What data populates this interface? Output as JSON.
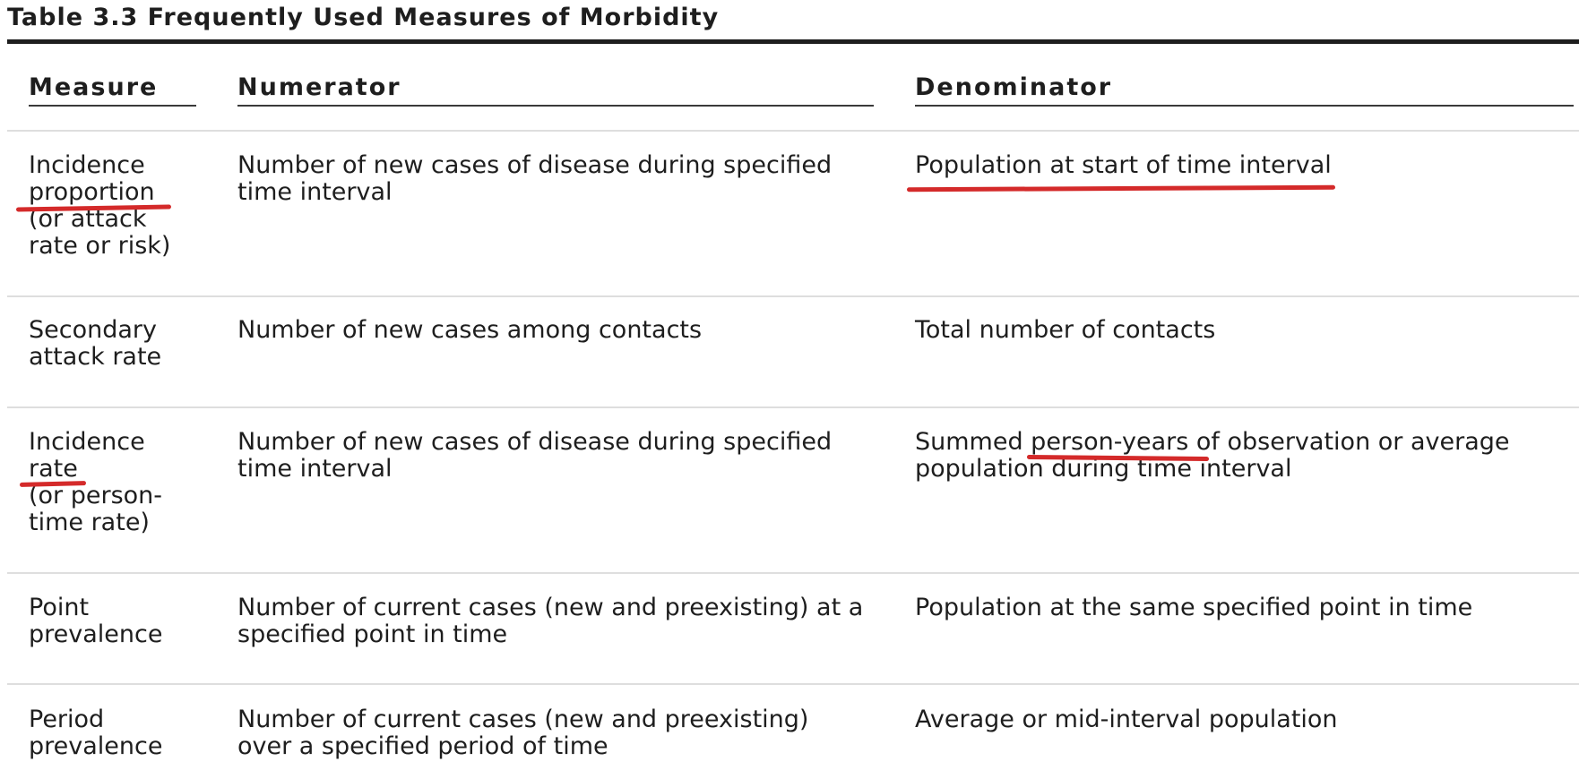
{
  "title": "Table 3.3 Frequently Used Measures of Morbidity",
  "columns": [
    "Measure",
    "Numerator",
    "Denominator"
  ],
  "rows": [
    {
      "measure": "Incidence\nproportion\n(or attack\nrate or risk)",
      "numerator": "Number of new cases of disease during specified\ntime interval",
      "denominator": "Population at start of time interval"
    },
    {
      "measure": "Secondary\nattack rate",
      "numerator": "Number of new cases among contacts",
      "denominator": "Total number of contacts"
    },
    {
      "measure": "Incidence\nrate\n(or person-\ntime rate)",
      "numerator": "Number of new cases of disease during specified\ntime interval",
      "denominator": "Summed person-years of observation or average\npopulation during time interval"
    },
    {
      "measure": "Point\nprevalence",
      "numerator": "Number of current cases (new and preexisting) at a\nspecified point in time",
      "denominator": "Population at the same specified point in time"
    },
    {
      "measure": "Period\nprevalence",
      "numerator": "Number of current cases (new and preexisting)\nover a specified period of time",
      "denominator": "Average or mid-interval population"
    }
  ],
  "annotation_color": "#d42a2a"
}
